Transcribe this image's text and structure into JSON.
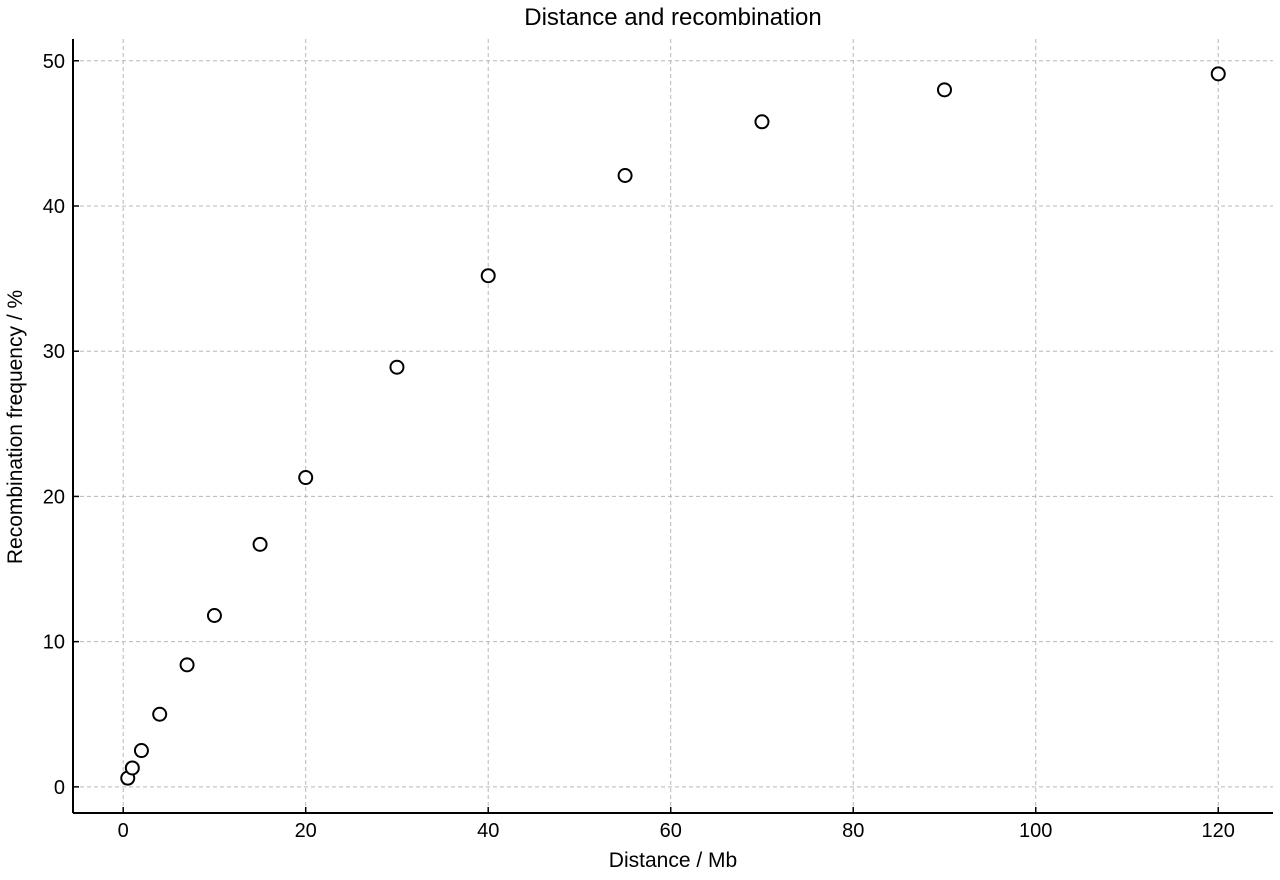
{
  "chart_data": {
    "type": "scatter",
    "title": "Distance and recombination",
    "xlabel": "Distance / Mb",
    "ylabel": "Recombination frequency / %",
    "xlim": [
      -5.5,
      126
    ],
    "ylim": [
      -1.8,
      51.5
    ],
    "xticks": [
      0,
      20,
      40,
      60,
      80,
      100,
      120
    ],
    "yticks": [
      0,
      10,
      20,
      30,
      40,
      50
    ],
    "grid": true,
    "marker": "open-circle",
    "marker_color": "#000000",
    "grid_color": "#b8b8b8",
    "points": [
      {
        "x": 0.5,
        "y": 0.6
      },
      {
        "x": 1,
        "y": 1.3
      },
      {
        "x": 2,
        "y": 2.5
      },
      {
        "x": 4,
        "y": 5.0
      },
      {
        "x": 7,
        "y": 8.4
      },
      {
        "x": 10,
        "y": 11.8
      },
      {
        "x": 15,
        "y": 16.7
      },
      {
        "x": 20,
        "y": 21.3
      },
      {
        "x": 30,
        "y": 28.9
      },
      {
        "x": 40,
        "y": 35.2
      },
      {
        "x": 55,
        "y": 42.1
      },
      {
        "x": 70,
        "y": 45.8
      },
      {
        "x": 90,
        "y": 48.0
      },
      {
        "x": 120,
        "y": 49.1
      }
    ]
  }
}
